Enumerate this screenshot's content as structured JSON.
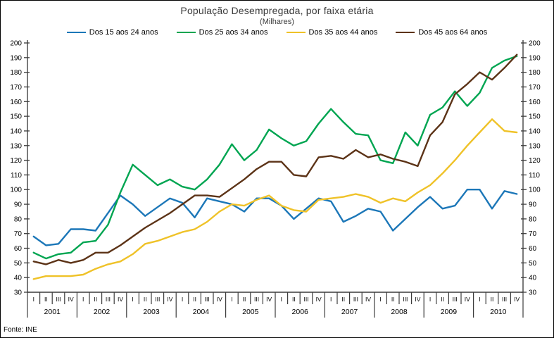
{
  "chart_data": {
    "type": "line",
    "title": "População Desempregada, por faixa etária",
    "subtitle": "(Milhares)",
    "source": "Fonte: INE",
    "ylim": [
      30,
      200
    ],
    "ytick_step": 10,
    "grid": false,
    "legend_position": "top",
    "axis_sides": [
      "left",
      "right"
    ],
    "x_years": [
      "2001",
      "2002",
      "2003",
      "2004",
      "2005",
      "2006",
      "2007",
      "2008",
      "2009",
      "2010"
    ],
    "x_quarters": [
      "I",
      "II",
      "III",
      "IV"
    ],
    "series": [
      {
        "name": "Dos 15 aos 24 anos",
        "color": "#1C77B8",
        "values": [
          68,
          62,
          63,
          73,
          73,
          72,
          84,
          96,
          90,
          82,
          88,
          94,
          91,
          81,
          94,
          92,
          90,
          85,
          94,
          94,
          89,
          80,
          87,
          94,
          92,
          78,
          82,
          87,
          85,
          72,
          80,
          88,
          95,
          87,
          89,
          100,
          100,
          87,
          99,
          97
        ]
      },
      {
        "name": "Dos 25 aos 34 anos",
        "color": "#00A551",
        "values": [
          57,
          53,
          56,
          57,
          64,
          65,
          76,
          98,
          117,
          110,
          103,
          107,
          102,
          100,
          107,
          117,
          131,
          120,
          127,
          141,
          135,
          130,
          133,
          145,
          155,
          146,
          138,
          137,
          120,
          118,
          139,
          130,
          151,
          156,
          167,
          157,
          166,
          183,
          188,
          191
        ]
      },
      {
        "name": "Dos 35 aos 44 anos",
        "color": "#EFC228",
        "values": [
          39,
          41,
          41,
          41,
          42,
          46,
          49,
          51,
          56,
          63,
          65,
          68,
          71,
          73,
          78,
          85,
          90,
          89,
          93,
          96,
          89,
          86,
          85,
          93,
          94,
          95,
          97,
          95,
          91,
          94,
          92,
          98,
          103,
          111,
          120,
          130,
          139,
          148,
          140,
          139
        ]
      },
      {
        "name": "Dos 45 aos 64 anos",
        "color": "#5C3317",
        "values": [
          51,
          49,
          52,
          50,
          52,
          57,
          57,
          62,
          68,
          74,
          79,
          84,
          90,
          96,
          96,
          95,
          101,
          107,
          114,
          119,
          119,
          110,
          109,
          122,
          123,
          121,
          127,
          122,
          124,
          121,
          119,
          116,
          137,
          146,
          165,
          172,
          180,
          175,
          183,
          192
        ]
      }
    ]
  }
}
